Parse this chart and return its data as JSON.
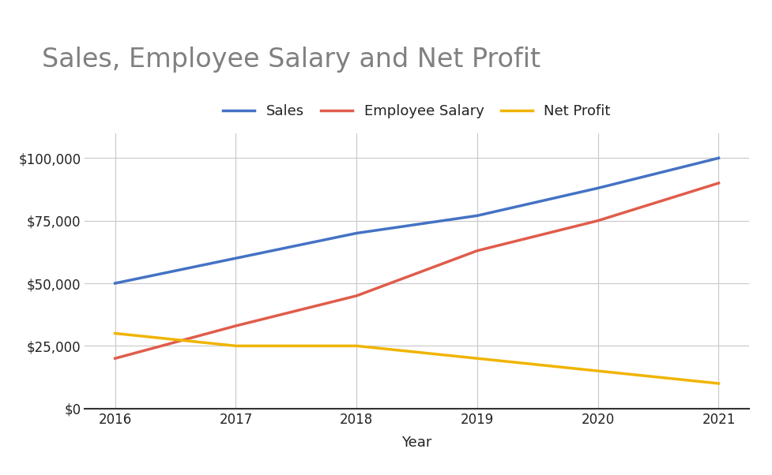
{
  "title": "Sales, Employee Salary and Net Profit",
  "xlabel": "Year",
  "years": [
    2016,
    2017,
    2018,
    2019,
    2020,
    2021
  ],
  "sales": [
    50000,
    60000,
    70000,
    77000,
    88000,
    100000
  ],
  "employee_salary": [
    20000,
    33000,
    45000,
    63000,
    75000,
    90000
  ],
  "net_profit": [
    30000,
    25000,
    25000,
    20000,
    15000,
    10000
  ],
  "sales_color": "#4472C4",
  "salary_color": "#E05C4B",
  "profit_color": "#F0B400",
  "background_color": "#FFFFFF",
  "plot_bg_color": "#FFFFFF",
  "grid_color": "#C8C8C8",
  "title_color": "#808080",
  "tick_label_color": "#222222",
  "spine_color": "#333333",
  "ylim": [
    0,
    110000
  ],
  "yticks": [
    0,
    25000,
    50000,
    75000,
    100000
  ],
  "title_fontsize": 24,
  "legend_fontsize": 13,
  "tick_fontsize": 12,
  "xlabel_fontsize": 13,
  "line_width": 2.5
}
